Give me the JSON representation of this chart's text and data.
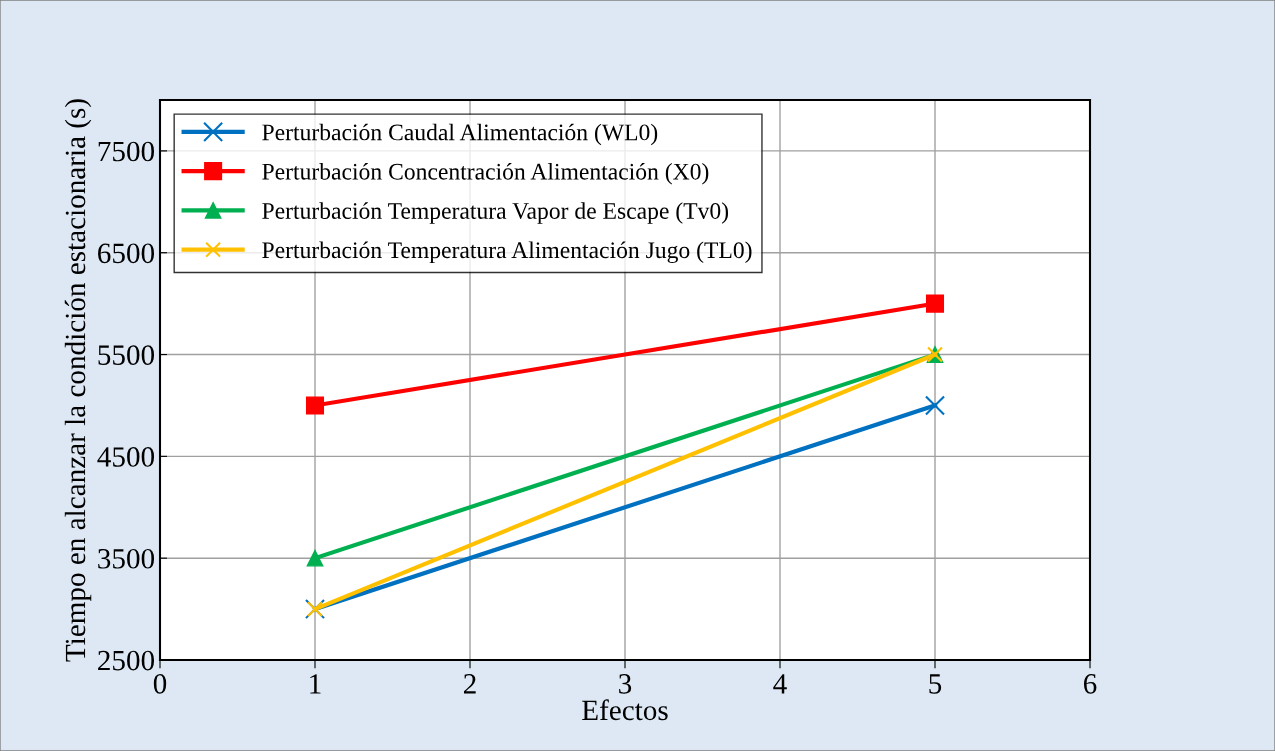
{
  "chart_data": {
    "type": "line",
    "xlabel": "Efectos",
    "ylabel": "Tiempo en alcanzar la condición estacionaria (s)",
    "x": [
      1,
      5
    ],
    "series": [
      {
        "name": "Perturbación Caudal Alimentación (WL0)",
        "color": "#0070c0",
        "values": [
          3000,
          5000
        ],
        "marker": "cross"
      },
      {
        "name": "Perturbación Concentración Alimentación (X0)",
        "color": "#ff0000",
        "values": [
          5000,
          6000
        ],
        "marker": "square"
      },
      {
        "name": "Perturbación Temperatura Vapor de Escape (Tv0)",
        "color": "#00b050",
        "values": [
          3500,
          5500
        ],
        "marker": "triangle"
      },
      {
        "name": "Perturbación Temperatura Alimentación Jugo (TL0)",
        "color": "#ffc000",
        "values": [
          3000,
          5500
        ],
        "marker": "cross"
      }
    ],
    "xlim": [
      0,
      6
    ],
    "xticks": [
      0,
      1,
      2,
      3,
      4,
      5,
      6
    ],
    "ylim": [
      2500,
      8000
    ],
    "yticks": [
      2500,
      3500,
      4500,
      5500,
      6500,
      7500
    ],
    "grid": true,
    "legend": "top left",
    "line_style": "solid"
  }
}
